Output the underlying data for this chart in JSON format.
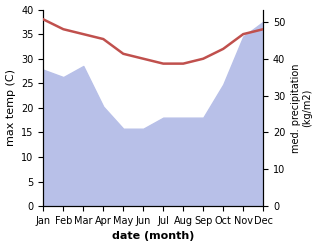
{
  "months": [
    "Jan",
    "Feb",
    "Mar",
    "Apr",
    "May",
    "Jun",
    "Jul",
    "Aug",
    "Sep",
    "Oct",
    "Nov",
    "Dec"
  ],
  "max_temp": [
    38,
    36,
    35,
    34,
    31,
    30,
    29,
    29,
    30,
    32,
    35,
    36
  ],
  "precipitation": [
    37,
    35,
    38,
    27,
    21,
    21,
    24,
    24,
    24,
    33,
    46,
    50
  ],
  "temp_color": "#c0504d",
  "precip_fill_color": "#b8c0e8",
  "ylabel_left": "max temp (C)",
  "ylabel_right": "med. precipitation\n(kg/m2)",
  "xlabel": "date (month)",
  "ylim_left": [
    0,
    40
  ],
  "ylim_right": [
    0,
    53.3
  ],
  "bg_color": "#ffffff"
}
